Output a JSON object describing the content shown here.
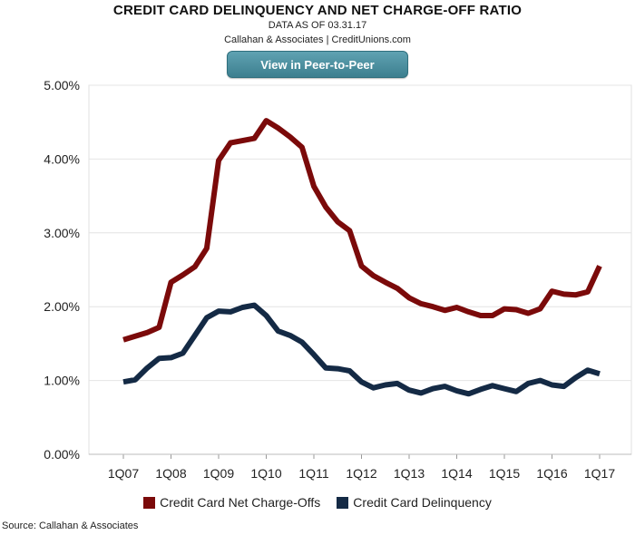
{
  "header": {
    "title": "CREDIT CARD DELINQUENCY AND NET CHARGE-OFF RATIO",
    "subtitle1": "DATA AS OF 03.31.17",
    "subtitle2": "Callahan & Associates | CreditUnions.com",
    "button_label": "View in Peer-to-Peer"
  },
  "source": "Source: Callahan & Associates",
  "colors": {
    "chargeoffs": "#7b0a0a",
    "delinquency": "#142a45",
    "button": "#4b8f9f",
    "grid": "#e4e4e4"
  },
  "chart_data": {
    "type": "line",
    "ylim": [
      0,
      5
    ],
    "yticks": [
      "0.00%",
      "1.00%",
      "2.00%",
      "3.00%",
      "4.00%",
      "5.00%"
    ],
    "xticks": [
      "1Q07",
      "1Q08",
      "1Q09",
      "1Q10",
      "1Q11",
      "1Q12",
      "1Q13",
      "1Q14",
      "1Q15",
      "1Q16",
      "1Q17"
    ],
    "grid": true,
    "legend_position": "bottom",
    "x": [
      "1Q07",
      "2Q07",
      "3Q07",
      "4Q07",
      "1Q08",
      "2Q08",
      "3Q08",
      "4Q08",
      "1Q09",
      "2Q09",
      "3Q09",
      "4Q09",
      "1Q10",
      "2Q10",
      "3Q10",
      "4Q10",
      "1Q11",
      "2Q11",
      "3Q11",
      "4Q11",
      "1Q12",
      "2Q12",
      "3Q12",
      "4Q12",
      "1Q13",
      "2Q13",
      "3Q13",
      "4Q13",
      "1Q14",
      "2Q14",
      "3Q14",
      "4Q14",
      "1Q15",
      "2Q15",
      "3Q15",
      "4Q15",
      "1Q16",
      "2Q16",
      "3Q16",
      "4Q16",
      "1Q17"
    ],
    "series": [
      {
        "name": "Credit Card Net Charge-Offs",
        "values": [
          1.55,
          1.6,
          1.65,
          1.72,
          2.33,
          2.43,
          2.54,
          2.79,
          3.98,
          4.22,
          4.25,
          4.28,
          4.52,
          4.42,
          4.3,
          4.16,
          3.63,
          3.35,
          3.15,
          3.03,
          2.55,
          2.42,
          2.33,
          2.25,
          2.12,
          2.04,
          2.0,
          1.95,
          1.99,
          1.93,
          1.88,
          1.88,
          1.97,
          1.96,
          1.91,
          1.97,
          2.21,
          2.17,
          2.16,
          2.2,
          2.55
        ]
      },
      {
        "name": "Credit Card Delinquency",
        "values": [
          0.98,
          1.01,
          1.17,
          1.3,
          1.31,
          1.37,
          1.61,
          1.85,
          1.94,
          1.93,
          1.99,
          2.02,
          1.88,
          1.67,
          1.61,
          1.52,
          1.35,
          1.17,
          1.16,
          1.13,
          0.98,
          0.9,
          0.94,
          0.96,
          0.87,
          0.83,
          0.89,
          0.92,
          0.86,
          0.82,
          0.88,
          0.93,
          0.89,
          0.85,
          0.96,
          1.0,
          0.94,
          0.92,
          1.04,
          1.14,
          1.09
        ]
      }
    ]
  }
}
